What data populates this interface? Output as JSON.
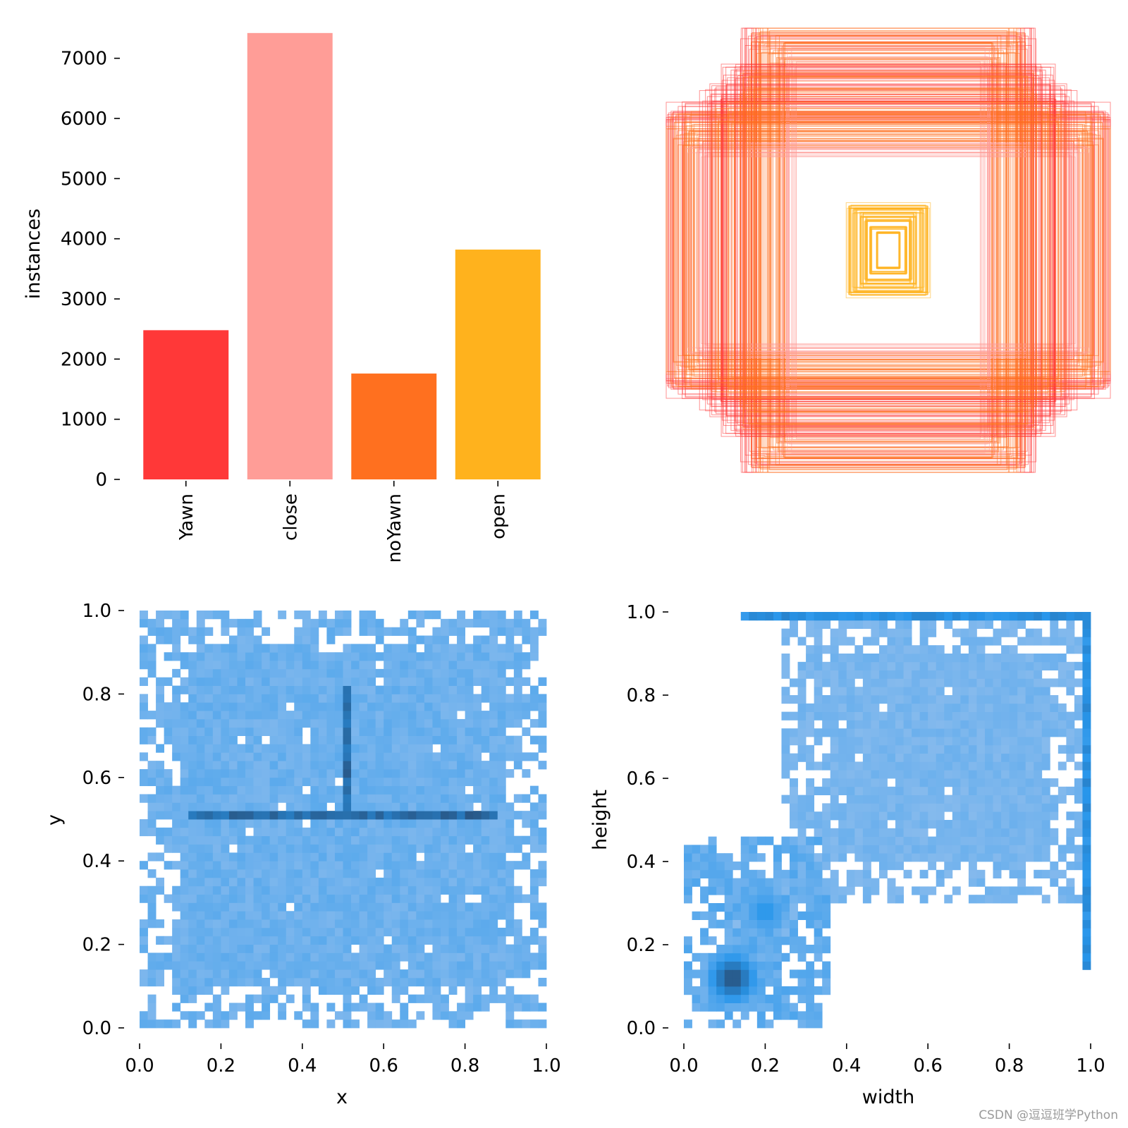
{
  "chart_data": [
    {
      "id": "class-counts",
      "type": "bar",
      "categories": [
        "Yawn",
        "close",
        "noYawn",
        "open"
      ],
      "values": [
        2480,
        7420,
        1760,
        3820
      ],
      "colors": [
        "#ff3838",
        "#ff9d97",
        "#ff701f",
        "#ffb21d"
      ],
      "ylabel": "instances",
      "xlabel": "",
      "ylim": [
        0,
        7500
      ],
      "yticks": [
        0,
        1000,
        2000,
        3000,
        4000,
        5000,
        6000,
        7000
      ],
      "ytick_labels": [
        "0",
        "1000",
        "2000",
        "3000",
        "4000",
        "5000",
        "6000",
        "7000"
      ]
    },
    {
      "id": "box-overlay",
      "type": "rectangles",
      "description_units": "normalized box width/height centered at (0.5, 0.5)",
      "boxes": [
        {
          "class": "close",
          "w": 0.98,
          "h": 0.62,
          "color": "#ff3838"
        },
        {
          "class": "close",
          "w": 0.62,
          "h": 0.98,
          "color": "#ff3838"
        },
        {
          "class": "close",
          "w": 0.95,
          "h": 0.58,
          "color": "#ff701f"
        },
        {
          "class": "close",
          "w": 0.58,
          "h": 0.95,
          "color": "#ff701f"
        },
        {
          "class": "close",
          "w": 0.9,
          "h": 0.5,
          "color": "#ff701f"
        },
        {
          "class": "close",
          "w": 0.5,
          "h": 0.9,
          "color": "#ff701f"
        },
        {
          "class": "close",
          "w": 0.85,
          "h": 0.45,
          "color": "#ff9d97"
        },
        {
          "class": "close",
          "w": 0.45,
          "h": 0.85,
          "color": "#ff9d97"
        },
        {
          "class": "Yawn",
          "w": 0.8,
          "h": 0.7,
          "color": "#ff3838"
        },
        {
          "class": "Yawn",
          "w": 0.7,
          "h": 0.8,
          "color": "#ff3838"
        },
        {
          "class": "noYawn",
          "w": 0.75,
          "h": 0.62,
          "color": "#ff701f"
        },
        {
          "class": "noYawn",
          "w": 0.62,
          "h": 0.75,
          "color": "#ff701f"
        },
        {
          "class": "open",
          "w": 0.18,
          "h": 0.2,
          "color": "#ffb21d"
        },
        {
          "class": "open",
          "w": 0.15,
          "h": 0.18,
          "color": "#ffb21d"
        },
        {
          "class": "open",
          "w": 0.12,
          "h": 0.16,
          "color": "#ffb21d"
        },
        {
          "class": "open",
          "w": 0.1,
          "h": 0.14,
          "color": "#ffb21d"
        },
        {
          "class": "open",
          "w": 0.08,
          "h": 0.1,
          "color": "#ffb21d"
        },
        {
          "class": "open",
          "w": 0.05,
          "h": 0.08,
          "color": "#ffb21d"
        }
      ]
    },
    {
      "id": "xy-hist",
      "type": "heatmap",
      "xlabel": "x",
      "ylabel": "y",
      "xlim": [
        0,
        1
      ],
      "ylim": [
        0,
        1
      ],
      "ticks": [
        "0.0",
        "0.2",
        "0.4",
        "0.6",
        "0.8",
        "1.0"
      ],
      "bins": 50,
      "regions": [
        {
          "kind": "fill",
          "x": [
            0.0,
            1.0
          ],
          "y": [
            0.0,
            1.0
          ],
          "level": 0.25
        },
        {
          "kind": "hline",
          "x": [
            0.13,
            0.87
          ],
          "y": 0.51,
          "level": 0.85
        },
        {
          "kind": "vline",
          "x": 0.51,
          "y": [
            0.51,
            0.82
          ],
          "level": 0.85
        }
      ]
    },
    {
      "id": "wh-hist",
      "type": "heatmap",
      "xlabel": "width",
      "ylabel": "height",
      "xlim": [
        0,
        1
      ],
      "ylim": [
        0,
        1
      ],
      "ticks": [
        "0.0",
        "0.2",
        "0.4",
        "0.6",
        "0.8",
        "1.0"
      ],
      "bins": 50,
      "regions": [
        {
          "kind": "fill",
          "x": [
            0.0,
            0.35
          ],
          "y": [
            0.0,
            0.45
          ],
          "level": 0.3
        },
        {
          "kind": "fill",
          "x": [
            0.25,
            1.0
          ],
          "y": [
            0.3,
            1.0
          ],
          "level": 0.2
        },
        {
          "kind": "hotspot",
          "x": 0.12,
          "y": 0.12,
          "level": 0.95
        },
        {
          "kind": "hotspot",
          "x": 0.2,
          "y": 0.28,
          "level": 0.55
        },
        {
          "kind": "hline",
          "x": [
            0.15,
            1.0
          ],
          "y": 0.99,
          "level": 0.6
        },
        {
          "kind": "vline",
          "x": 0.99,
          "y": [
            0.15,
            1.0
          ],
          "level": 0.6
        }
      ]
    }
  ],
  "watermark": "CSDN @逗逗班学Python"
}
